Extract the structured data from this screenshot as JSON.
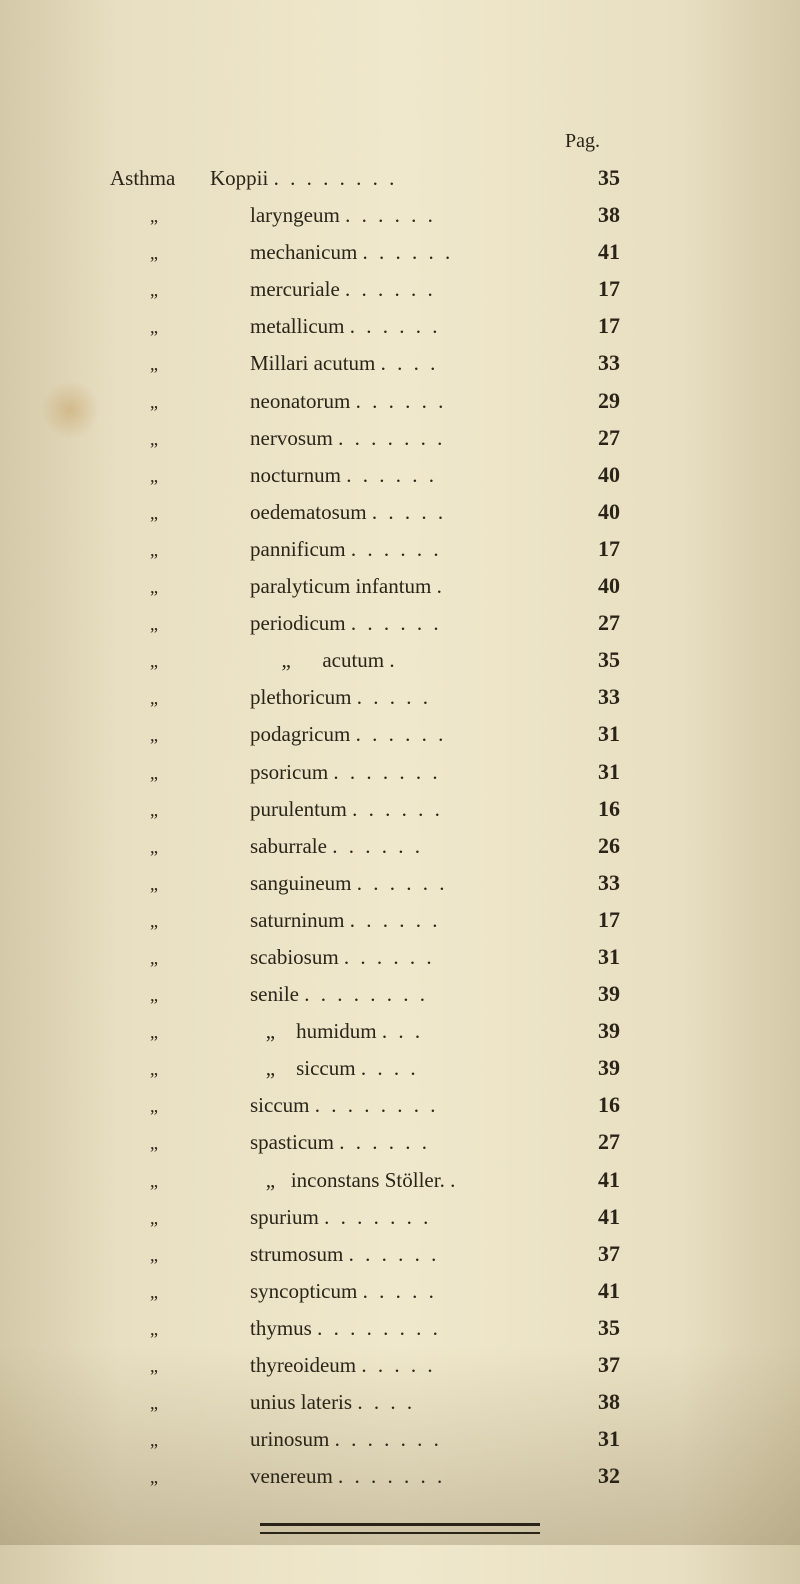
{
  "header": {
    "pag_label": "Pag."
  },
  "entries": [
    {
      "label": "Asthma",
      "text": "Koppii",
      "page": "35"
    },
    {
      "label": "„",
      "text": "laryngeum",
      "page": "38"
    },
    {
      "label": "„",
      "text": "mechanicum",
      "page": "41"
    },
    {
      "label": "„",
      "text": "mercuriale",
      "page": "17"
    },
    {
      "label": "„",
      "text": "metallicum",
      "page": "17"
    },
    {
      "label": "„",
      "text": "Millari acutum",
      "page": "33"
    },
    {
      "label": "„",
      "text": "neonatorum",
      "page": "29"
    },
    {
      "label": "„",
      "text": "nervosum",
      "page": "27"
    },
    {
      "label": "„",
      "text": "nocturnum",
      "page": "40"
    },
    {
      "label": "„",
      "text": "oedematosum",
      "page": "40"
    },
    {
      "label": "„",
      "text": "pannificum",
      "page": "17"
    },
    {
      "label": "„",
      "text": "paralyticum infantum",
      "page": "40"
    },
    {
      "label": "„",
      "text": "periodicum",
      "page": "27"
    },
    {
      "label": "„",
      "text": "      „      acutum",
      "page": "35"
    },
    {
      "label": "„",
      "text": "plethoricum",
      "page": "33"
    },
    {
      "label": "„",
      "text": "podagricum",
      "page": "31"
    },
    {
      "label": "„",
      "text": "psoricum",
      "page": "31"
    },
    {
      "label": "„",
      "text": "purulentum",
      "page": "16"
    },
    {
      "label": "„",
      "text": "saburrale",
      "page": "26"
    },
    {
      "label": "„",
      "text": "sanguineum",
      "page": "33"
    },
    {
      "label": "„",
      "text": "saturninum",
      "page": "17"
    },
    {
      "label": "„",
      "text": "scabiosum",
      "page": "31"
    },
    {
      "label": "„",
      "text": "senile",
      "page": "39"
    },
    {
      "label": "„",
      "text": "   „    humidum",
      "page": "39"
    },
    {
      "label": "„",
      "text": "   „    siccum",
      "page": "39"
    },
    {
      "label": "„",
      "text": "siccum",
      "page": "16"
    },
    {
      "label": "„",
      "text": "spasticum",
      "page": "27"
    },
    {
      "label": "„",
      "text": "   „   inconstans Stöller.",
      "page": "41"
    },
    {
      "label": "„",
      "text": "spurium",
      "page": "41"
    },
    {
      "label": "„",
      "text": "strumosum",
      "page": "37"
    },
    {
      "label": "„",
      "text": "syncopticum",
      "page": "41"
    },
    {
      "label": "„",
      "text": "thymus",
      "page": "35"
    },
    {
      "label": "„",
      "text": "thyreoideum",
      "page": "37"
    },
    {
      "label": "„",
      "text": "unius lateris",
      "page": "38"
    },
    {
      "label": "„",
      "text": "urinosum",
      "page": "31"
    },
    {
      "label": "„",
      "text": "venereum",
      "page": "32"
    }
  ],
  "styling": {
    "background_gradient": [
      "#d4c9a8",
      "#e8dfc2",
      "#f0e8cc"
    ],
    "text_color": "#2a2418",
    "font_family": "Times New Roman",
    "body_fontsize": 21,
    "page_num_fontsize": 22,
    "page_num_weight": "bold",
    "line_height": 1.55,
    "divider_color": "#2a2418",
    "divider_width": 280
  }
}
